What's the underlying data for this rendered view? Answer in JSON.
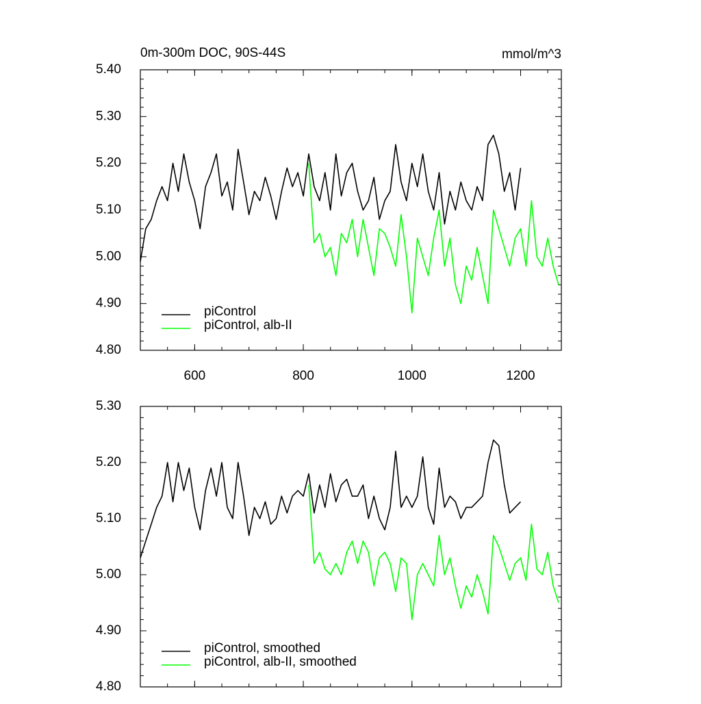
{
  "chart_data": [
    {
      "type": "line",
      "title": "0m-300m DOC, 90S-44S",
      "units": "mmol/m^3",
      "xlim": [
        500,
        1275
      ],
      "xticks": [
        600,
        800,
        1000,
        1200
      ],
      "ylim": [
        4.8,
        5.4
      ],
      "yticks": [
        {
          "value": 4.8,
          "label": "4.80"
        },
        {
          "value": 4.9,
          "label": "4.90"
        },
        {
          "value": 5.0,
          "label": "5.00"
        },
        {
          "value": 5.1,
          "label": "5.10"
        },
        {
          "value": 5.2,
          "label": "5.20"
        },
        {
          "value": 5.3,
          "label": "5.30"
        },
        {
          "value": 5.4,
          "label": "5.40"
        }
      ],
      "legend": "lower left",
      "series": [
        {
          "name": "piControl",
          "color": "#000000",
          "x": [
            500,
            510,
            520,
            530,
            540,
            550,
            560,
            570,
            580,
            590,
            600,
            610,
            620,
            630,
            640,
            650,
            660,
            670,
            680,
            690,
            700,
            710,
            720,
            730,
            740,
            750,
            760,
            770,
            780,
            790,
            800,
            810,
            820,
            830,
            840,
            850,
            860,
            870,
            880,
            890,
            900,
            910,
            920,
            930,
            940,
            950,
            960,
            970,
            980,
            990,
            1000,
            1010,
            1020,
            1030,
            1040,
            1050,
            1060,
            1070,
            1080,
            1090,
            1100,
            1110,
            1120,
            1130,
            1140,
            1150,
            1160,
            1170,
            1180,
            1190,
            1200
          ],
          "values": [
            4.99,
            5.06,
            5.08,
            5.12,
            5.15,
            5.12,
            5.2,
            5.14,
            5.22,
            5.16,
            5.12,
            5.06,
            5.15,
            5.18,
            5.22,
            5.13,
            5.16,
            5.1,
            5.23,
            5.16,
            5.09,
            5.14,
            5.12,
            5.17,
            5.13,
            5.08,
            5.14,
            5.19,
            5.15,
            5.18,
            5.13,
            5.22,
            5.15,
            5.12,
            5.18,
            5.1,
            5.22,
            5.13,
            5.18,
            5.2,
            5.14,
            5.1,
            5.12,
            5.17,
            5.08,
            5.12,
            5.14,
            5.24,
            5.16,
            5.12,
            5.2,
            5.15,
            5.22,
            5.14,
            5.1,
            5.18,
            5.07,
            5.14,
            5.1,
            5.16,
            5.12,
            5.1,
            5.15,
            5.12,
            5.24,
            5.26,
            5.22,
            5.14,
            5.18,
            5.1,
            5.19
          ]
        },
        {
          "name": "piControl, alb-II",
          "color": "#00ff00",
          "x": [
            810,
            820,
            830,
            840,
            850,
            860,
            870,
            880,
            890,
            900,
            910,
            920,
            930,
            940,
            950,
            960,
            970,
            980,
            990,
            1000,
            1010,
            1020,
            1030,
            1040,
            1050,
            1060,
            1070,
            1080,
            1090,
            1100,
            1110,
            1120,
            1130,
            1140,
            1150,
            1160,
            1170,
            1180,
            1190,
            1200,
            1210,
            1220,
            1230,
            1240,
            1250,
            1260,
            1270
          ],
          "values": [
            5.2,
            5.03,
            5.05,
            5.0,
            5.02,
            4.96,
            5.05,
            5.03,
            5.08,
            5.0,
            5.08,
            5.02,
            4.96,
            5.06,
            5.05,
            5.02,
            4.98,
            5.09,
            5.0,
            4.88,
            5.04,
            5.0,
            4.96,
            5.04,
            5.1,
            4.98,
            5.04,
            4.94,
            4.9,
            4.98,
            4.95,
            5.02,
            4.96,
            4.9,
            5.1,
            5.06,
            5.02,
            4.98,
            5.04,
            5.06,
            4.98,
            5.12,
            5.0,
            4.98,
            5.04,
            4.98,
            4.94
          ]
        }
      ]
    },
    {
      "type": "line",
      "xlim": [
        500,
        1275
      ],
      "xticks": [
        600,
        800,
        1000,
        1200
      ],
      "ylim": [
        4.8,
        5.3
      ],
      "yticks": [
        {
          "value": 4.8,
          "label": "4.80"
        },
        {
          "value": 4.9,
          "label": "4.90"
        },
        {
          "value": 5.0,
          "label": "5.00"
        },
        {
          "value": 5.1,
          "label": "5.10"
        },
        {
          "value": 5.2,
          "label": "5.20"
        },
        {
          "value": 5.3,
          "label": "5.30"
        }
      ],
      "legend": "lower left",
      "series": [
        {
          "name": "piControl, smoothed",
          "color": "#000000",
          "x": [
            500,
            510,
            520,
            530,
            540,
            550,
            560,
            570,
            580,
            590,
            600,
            610,
            620,
            630,
            640,
            650,
            660,
            670,
            680,
            690,
            700,
            710,
            720,
            730,
            740,
            750,
            760,
            770,
            780,
            790,
            800,
            810,
            820,
            830,
            840,
            850,
            860,
            870,
            880,
            890,
            900,
            910,
            920,
            930,
            940,
            950,
            960,
            970,
            980,
            990,
            1000,
            1010,
            1020,
            1030,
            1040,
            1050,
            1060,
            1070,
            1080,
            1090,
            1100,
            1110,
            1120,
            1130,
            1140,
            1150,
            1160,
            1170,
            1180,
            1190,
            1200
          ],
          "values": [
            5.03,
            5.06,
            5.09,
            5.12,
            5.14,
            5.2,
            5.13,
            5.2,
            5.15,
            5.19,
            5.12,
            5.08,
            5.15,
            5.19,
            5.14,
            5.2,
            5.12,
            5.1,
            5.2,
            5.14,
            5.07,
            5.12,
            5.1,
            5.13,
            5.09,
            5.1,
            5.14,
            5.11,
            5.14,
            5.15,
            5.14,
            5.18,
            5.11,
            5.16,
            5.12,
            5.18,
            5.13,
            5.16,
            5.17,
            5.14,
            5.14,
            5.16,
            5.1,
            5.14,
            5.1,
            5.08,
            5.12,
            5.22,
            5.12,
            5.14,
            5.12,
            5.14,
            5.21,
            5.12,
            5.09,
            5.19,
            5.12,
            5.14,
            5.13,
            5.1,
            5.12,
            5.12,
            5.13,
            5.14,
            5.2,
            5.24,
            5.23,
            5.16,
            5.11,
            5.12,
            5.13
          ]
        },
        {
          "name": "piControl, alb-II, smoothed",
          "color": "#00ff00",
          "x": [
            810,
            820,
            830,
            840,
            850,
            860,
            870,
            880,
            890,
            900,
            910,
            920,
            930,
            940,
            950,
            960,
            970,
            980,
            990,
            1000,
            1010,
            1020,
            1030,
            1040,
            1050,
            1060,
            1070,
            1080,
            1090,
            1100,
            1110,
            1120,
            1130,
            1140,
            1150,
            1160,
            1170,
            1180,
            1190,
            1200,
            1210,
            1220,
            1230,
            1240,
            1250,
            1260,
            1270
          ],
          "values": [
            5.16,
            5.02,
            5.04,
            5.01,
            5.0,
            5.02,
            5.0,
            5.04,
            5.06,
            5.02,
            5.06,
            5.04,
            4.98,
            5.03,
            5.04,
            5.02,
            4.97,
            5.03,
            5.02,
            4.92,
            5.0,
            5.02,
            5.0,
            4.98,
            5.07,
            5.0,
            5.03,
            4.98,
            4.94,
            4.98,
            4.96,
            5.0,
            4.97,
            4.93,
            5.07,
            5.05,
            5.02,
            4.99,
            5.02,
            5.03,
            4.99,
            5.09,
            5.01,
            5.0,
            5.04,
            4.98,
            4.95
          ]
        }
      ]
    }
  ]
}
